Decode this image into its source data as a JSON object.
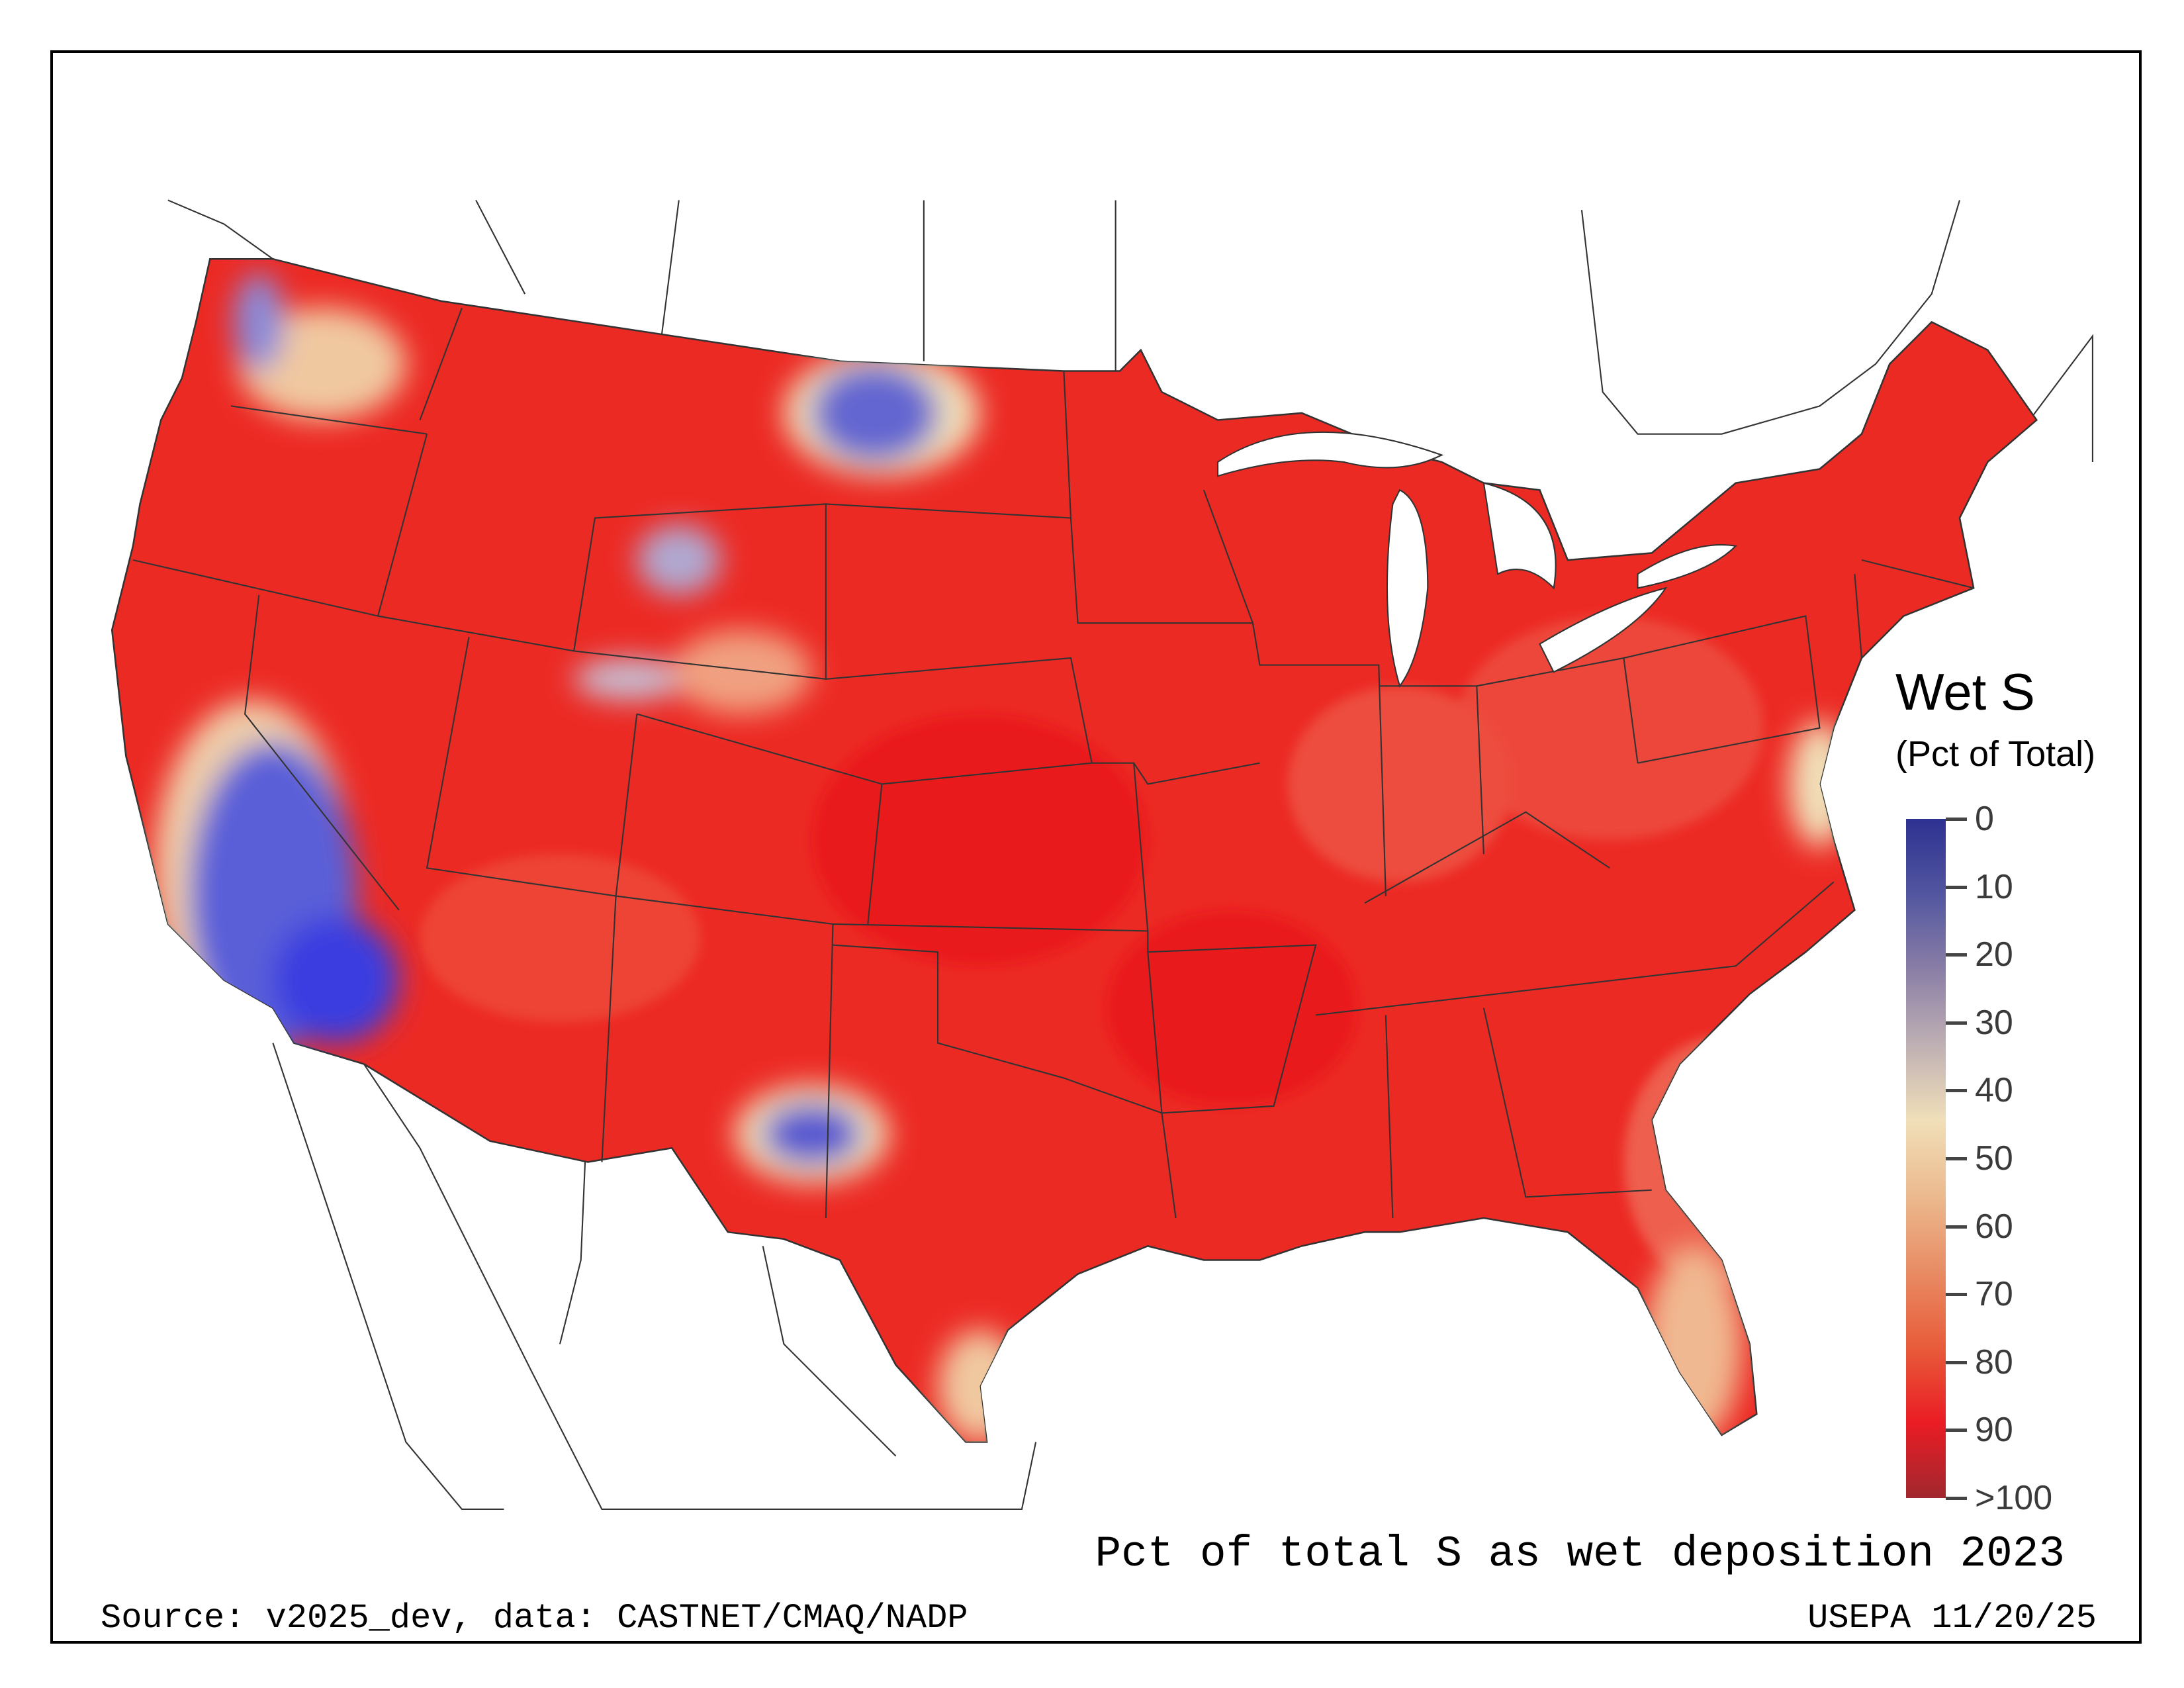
{
  "legend": {
    "title": "Wet S",
    "subtitle": "(Pct of Total)",
    "ticks": [
      "0",
      "10",
      "20",
      "30",
      "40",
      "50",
      "60",
      "70",
      "80",
      "90",
      ">100"
    ],
    "colors": [
      "#2e3190",
      "#5256a0",
      "#8a7ea6",
      "#bfb0b4",
      "#f0dfb8",
      "#ecb98e",
      "#e88c64",
      "#e85c3a",
      "#ea1c24",
      "#a0282e"
    ]
  },
  "map": {
    "title": "Pct of total S as wet deposition 2023",
    "dominant_color": "#ec2a24",
    "low_color": "#4a4fd0"
  },
  "footer": {
    "source": "Source: v2025_dev, data: CASTNET/CMAQ/NADP",
    "credit": "USEPA 11/20/25"
  }
}
